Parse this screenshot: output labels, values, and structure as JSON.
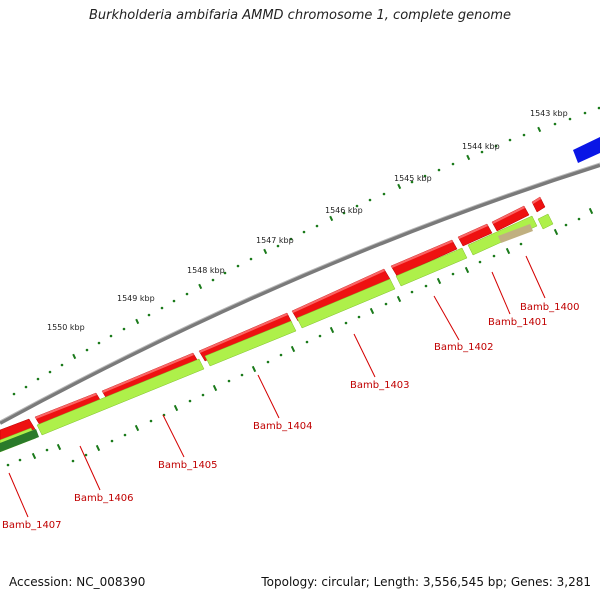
{
  "title": "Burkholderia ambifaria AMMD chromosome 1, complete genome",
  "footer": {
    "accession": "Accession: NC_008390",
    "summary": "Topology: circular; Length: 3,556,545 bp; Genes: 3,281"
  },
  "ticks": [
    {
      "label": "1543 kbp"
    },
    {
      "label": "1544 kbp"
    },
    {
      "label": "1545 kbp"
    },
    {
      "label": "1546 kbp"
    },
    {
      "label": "1547 kbp"
    },
    {
      "label": "1548 kbp"
    },
    {
      "label": "1549 kbp"
    },
    {
      "label": "1550 kbp"
    }
  ],
  "genes": [
    {
      "label": "Bamb_1400"
    },
    {
      "label": "Bamb_1401"
    },
    {
      "label": "Bamb_1402"
    },
    {
      "label": "Bamb_1403"
    },
    {
      "label": "Bamb_1404"
    },
    {
      "label": "Bamb_1405"
    },
    {
      "label": "Bamb_1406"
    },
    {
      "label": "Bamb_1407"
    }
  ],
  "colors": {
    "cds": "#ee1111",
    "gene": "#aef04a",
    "backbone": "#7a7a7a",
    "ticks": "#1a7a1a",
    "other_feature": "#0a16e6",
    "pseudo": "#c0b080",
    "dark_gene": "#2a7a2a"
  }
}
